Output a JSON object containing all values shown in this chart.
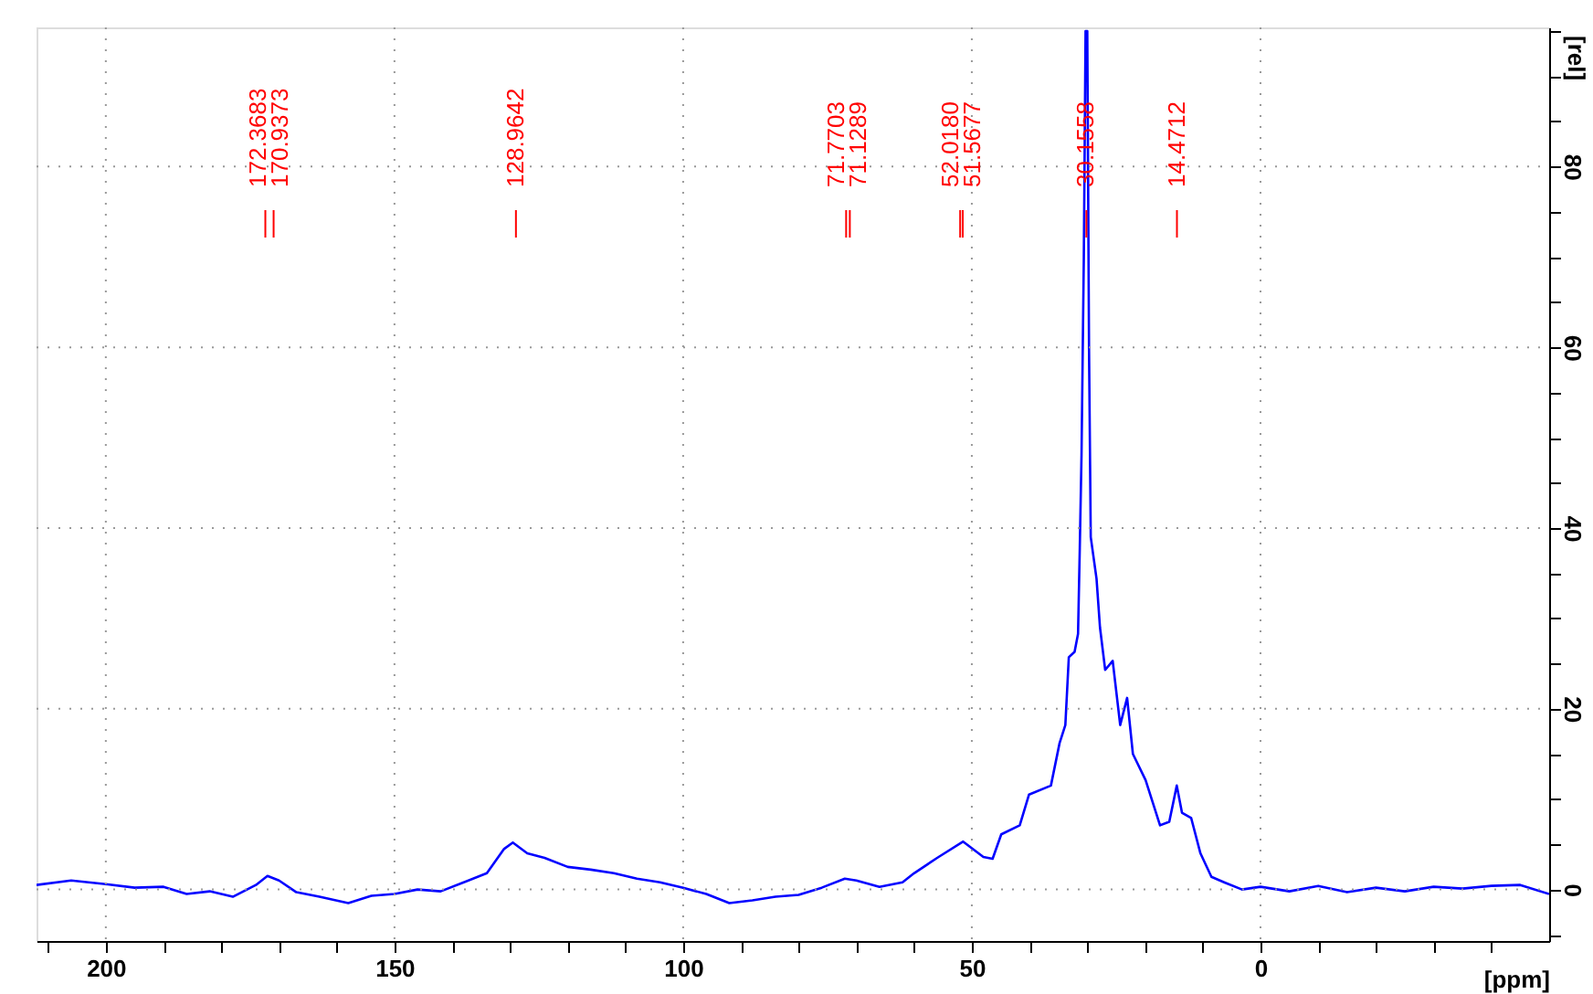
{
  "chart_data": {
    "type": "line",
    "xlabel": "[ppm]",
    "ylabel": "[rel]",
    "x": [
      212,
      206,
      200,
      195,
      190,
      186,
      182,
      178,
      174,
      172,
      170,
      167,
      163,
      158,
      154,
      150,
      146,
      142,
      138,
      134,
      131,
      129.5,
      127,
      124,
      120,
      116,
      112,
      108,
      104,
      100,
      96,
      92,
      88,
      84,
      80,
      76,
      72,
      70,
      66,
      62,
      60,
      56,
      51.5,
      48,
      46.4,
      44.9,
      41.7,
      40.1,
      36.3,
      34.8,
      33.8,
      33.2,
      32.2,
      31.6,
      31.3,
      31.0,
      30.6,
      30.3,
      30.0,
      29.7,
      29.4,
      28.4,
      27.8,
      26.9,
      25.6,
      24.3,
      23.1,
      22.1,
      19.9,
      17.4,
      15.8,
      14.5,
      13.6,
      12,
      10.4,
      8.5,
      6.3,
      3.2,
      0,
      -5,
      -10,
      -15,
      -20,
      -25,
      -30,
      -35,
      -40,
      -45,
      -50
    ],
    "series": [
      {
        "color": "#0000ff",
        "values": [
          0.5,
          1.0,
          0.6,
          0.2,
          0.3,
          -0.5,
          -0.2,
          -0.8,
          0.5,
          1.5,
          1.0,
          -0.3,
          -0.8,
          -1.5,
          -0.7,
          -0.5,
          0,
          -0.2,
          0.8,
          1.8,
          4.5,
          5.2,
          4,
          3.5,
          2.5,
          2.2,
          1.8,
          1.2,
          0.8,
          0.2,
          -0.5,
          -1.5,
          -1.2,
          -0.8,
          -0.6,
          0.2,
          1.2,
          1.0,
          0.3,
          0.8,
          1.8,
          3.5,
          5.3,
          3.6,
          3.4,
          6.1,
          7.1,
          10.5,
          11.5,
          16.2,
          18.2,
          25.7,
          26.3,
          28.3,
          37.8,
          48,
          70,
          95,
          95,
          60,
          39,
          34.4,
          29,
          24.3,
          25.3,
          18.2,
          21.2,
          15,
          12.1,
          7.1,
          7.5,
          11.5,
          8.5,
          7.9,
          4,
          1.4,
          0.8,
          0,
          0.3,
          -0.2,
          0.4,
          -0.3,
          0.2,
          -0.2,
          0.3,
          0.1,
          0.4,
          0.5,
          -0.5
        ]
      }
    ],
    "xlim": [
      212,
      -50
    ],
    "ylim": [
      -5.7,
      95.4
    ],
    "xticks": [
      {
        "value": 210,
        "label": null
      },
      200,
      {
        "value": 190,
        "label": null
      },
      {
        "value": 180,
        "label": null
      },
      {
        "value": 170,
        "label": null
      },
      {
        "value": 160,
        "label": null
      },
      150,
      {
        "value": 140,
        "label": null
      },
      {
        "value": 130,
        "label": null
      },
      {
        "value": 120,
        "label": null
      },
      {
        "value": 110,
        "label": null
      },
      100,
      {
        "value": 90,
        "label": null
      },
      {
        "value": 80,
        "label": null
      },
      {
        "value": 70,
        "label": null
      },
      {
        "value": 60,
        "label": null
      },
      50,
      {
        "value": 40,
        "label": null
      },
      {
        "value": 30,
        "label": null
      },
      {
        "value": 20,
        "label": null
      },
      {
        "value": 10,
        "label": null
      },
      0,
      {
        "value": -10,
        "label": null
      },
      {
        "value": -20,
        "label": null
      },
      {
        "value": -30,
        "label": null
      },
      {
        "value": -40,
        "label": null
      }
    ],
    "yticks": [
      {
        "value": -5,
        "label": null
      },
      0,
      {
        "value": 5,
        "label": null
      },
      {
        "value": 10,
        "label": null
      },
      {
        "value": 15,
        "label": null
      },
      20,
      {
        "value": 25,
        "label": null
      },
      {
        "value": 30,
        "label": null
      },
      {
        "value": 35,
        "label": null
      },
      40,
      {
        "value": 45,
        "label": null
      },
      {
        "value": 50,
        "label": null
      },
      {
        "value": 55,
        "label": null
      },
      60,
      {
        "value": 65,
        "label": null
      },
      {
        "value": 70,
        "label": null
      },
      {
        "value": 75,
        "label": null
      },
      80,
      {
        "value": 85,
        "label": null
      },
      {
        "value": 90,
        "label": null
      },
      {
        "value": 95,
        "label": null
      }
    ],
    "grid": true,
    "annotations": [
      {
        "text": "172.3683",
        "x": 172.3683
      },
      {
        "text": "170.9373",
        "x": 170.9373
      },
      {
        "text": "128.9642",
        "x": 128.9642
      },
      {
        "text": "71.7703",
        "x": 71.7703
      },
      {
        "text": "71.1289",
        "x": 71.1289
      },
      {
        "text": "52.0180",
        "x": 52.018
      },
      {
        "text": "51.5677",
        "x": 51.5677
      },
      {
        "text": "30.1558",
        "x": 30.1558
      },
      {
        "text": "14.4712",
        "x": 14.4712
      }
    ]
  }
}
